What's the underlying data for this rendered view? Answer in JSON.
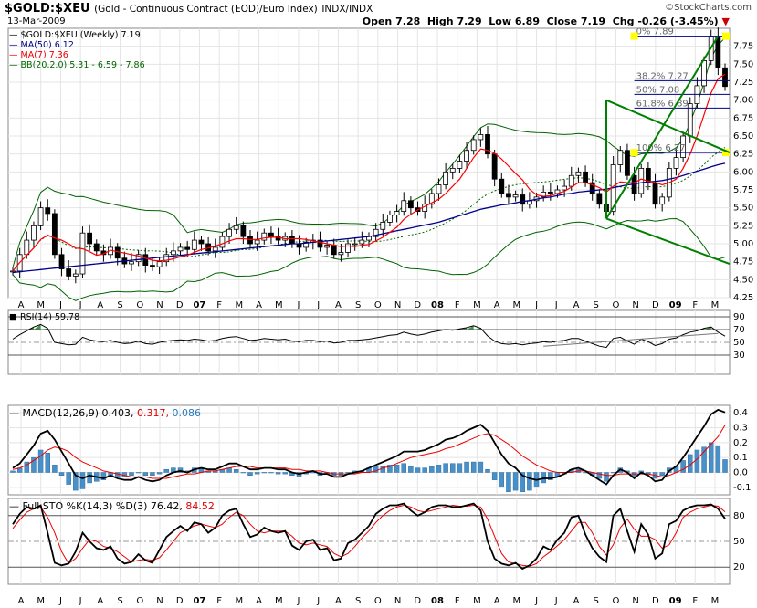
{
  "header": {
    "symbol": "$GOLD:$XEU",
    "description": "(Gold - Continuous Contract (EOD)/Euro Index)",
    "exchange": "INDX/INDX",
    "date": "13-Mar-2009",
    "brand": "©StockCharts.com",
    "quote": {
      "open_label": "Open",
      "open": "7.28",
      "high_label": "High",
      "high": "7.29",
      "low_label": "Low",
      "low": "6.89",
      "close_label": "Close",
      "close": "7.19",
      "chg_label": "Chg",
      "chg": "-0.26 (-3.45%)",
      "chg_arrow": "▼"
    }
  },
  "legend": {
    "main": "$GOLD:$XEU (Weekly) 7.19",
    "ma50": "MA(50) 6.12",
    "ma7": "MA(7) 7.36",
    "bb": "BB(20,2.0) 5.31 - 6.59 - 7.86",
    "rsi": "RSI(14) 59.78",
    "macd_label": "MACD(12,26,9)",
    "macd_v1": "0.403,",
    "macd_v2": "0.317,",
    "macd_v3": "0.086",
    "sto_label": "Full STO %K(14,3) %D(3)",
    "sto_v1": "76.42,",
    "sto_v2": "84.52"
  },
  "fib_labels": [
    "0% 7.89",
    "38.2% 7.27",
    "50% 7.08",
    "61.8% 6.89",
    "100% 6.27"
  ],
  "colors": {
    "price": "#000000",
    "ma50": "#00008b",
    "ma7": "#ff0000",
    "bb": "#006400",
    "fib": "#000080",
    "trend": "#008000",
    "hist": "#4a90c8",
    "grid": "#e4e4e4",
    "anchor": "#ffff00",
    "rsifill": "#2e7d32"
  },
  "chart_data": {
    "type": "line",
    "title": "$GOLD:$XEU (Weekly)",
    "x_ticks": [
      "A",
      "M",
      "J",
      "J",
      "A",
      "S",
      "O",
      "N",
      "D",
      "07",
      "F",
      "M",
      "A",
      "M",
      "J",
      "J",
      "A",
      "S",
      "O",
      "N",
      "D",
      "08",
      "F",
      "M",
      "A",
      "M",
      "J",
      "J",
      "A",
      "S",
      "O",
      "N",
      "D",
      "09",
      "F",
      "M"
    ],
    "n": 103,
    "price_axis": {
      "ylim": [
        4.25,
        8.0
      ],
      "ticks": [
        "4.25",
        "4.50",
        "4.75",
        "5.00",
        "5.25",
        "5.50",
        "5.75",
        "6.00",
        "6.25",
        "6.50",
        "6.75",
        "7.00",
        "7.25",
        "7.50",
        "7.75"
      ]
    },
    "price_close": [
      4.62,
      4.85,
      5.05,
      5.25,
      5.5,
      5.42,
      4.85,
      4.65,
      4.55,
      4.58,
      5.15,
      5.0,
      4.9,
      4.85,
      4.95,
      4.8,
      4.72,
      4.75,
      4.85,
      4.7,
      4.68,
      4.75,
      4.85,
      4.9,
      4.95,
      4.92,
      5.05,
      5.0,
      4.9,
      4.95,
      5.1,
      5.2,
      5.25,
      5.1,
      5.0,
      5.05,
      5.15,
      5.1,
      5.05,
      5.1,
      5.0,
      4.95,
      5.02,
      5.05,
      4.95,
      4.98,
      4.85,
      4.88,
      5.0,
      5.0,
      5.05,
      5.1,
      5.2,
      5.3,
      5.4,
      5.45,
      5.6,
      5.5,
      5.45,
      5.55,
      5.7,
      5.82,
      6.0,
      6.05,
      6.15,
      6.3,
      6.45,
      6.52,
      6.25,
      5.9,
      5.7,
      5.65,
      5.68,
      5.55,
      5.6,
      5.65,
      5.72,
      5.7,
      5.75,
      5.8,
      5.95,
      6.0,
      5.85,
      5.7,
      5.55,
      5.45,
      6.1,
      6.3,
      5.95,
      5.7,
      6.05,
      5.85,
      5.55,
      5.65,
      6.05,
      6.2,
      6.5,
      6.95,
      7.2,
      7.55,
      7.89,
      7.45,
      7.19
    ],
    "ma7": [
      4.62,
      4.74,
      4.84,
      4.94,
      5.06,
      5.12,
      5.08,
      5.05,
      5.0,
      4.94,
      4.93,
      4.89,
      4.84,
      4.86,
      4.91,
      4.89,
      4.87,
      4.85,
      4.83,
      4.8,
      4.77,
      4.76,
      4.77,
      4.79,
      4.82,
      4.84,
      4.88,
      4.92,
      4.94,
      4.97,
      5.0,
      5.04,
      5.07,
      5.07,
      5.06,
      5.06,
      5.08,
      5.09,
      5.09,
      5.07,
      5.07,
      5.07,
      5.06,
      5.04,
      5.02,
      5.0,
      4.98,
      4.96,
      4.97,
      4.96,
      4.98,
      4.99,
      5.04,
      5.09,
      5.16,
      5.23,
      5.34,
      5.41,
      5.47,
      5.52,
      5.57,
      5.62,
      5.7,
      5.8,
      5.9,
      6.05,
      6.2,
      6.32,
      6.3,
      6.26,
      6.18,
      6.08,
      5.98,
      5.89,
      5.76,
      5.68,
      5.66,
      5.67,
      5.7,
      5.73,
      5.79,
      5.85,
      5.85,
      5.82,
      5.78,
      5.72,
      5.8,
      5.86,
      5.85,
      5.85,
      5.9,
      5.87,
      5.85,
      5.82,
      5.85,
      5.9,
      6.05,
      6.25,
      6.5,
      6.8,
      7.1,
      7.3,
      7.36
    ],
    "ma50": [
      4.6,
      4.61,
      4.62,
      4.63,
      4.64,
      4.65,
      4.66,
      4.67,
      4.68,
      4.69,
      4.7,
      4.71,
      4.72,
      4.73,
      4.74,
      4.75,
      4.76,
      4.77,
      4.78,
      4.79,
      4.8,
      4.81,
      4.82,
      4.83,
      4.84,
      4.85,
      4.86,
      4.87,
      4.88,
      4.89,
      4.9,
      4.91,
      4.92,
      4.93,
      4.94,
      4.95,
      4.96,
      4.97,
      4.98,
      4.99,
      5.0,
      5.0,
      5.01,
      5.02,
      5.03,
      5.04,
      5.05,
      5.06,
      5.07,
      5.08,
      5.09,
      5.1,
      5.12,
      5.14,
      5.16,
      5.18,
      5.2,
      5.22,
      5.24,
      5.26,
      5.28,
      5.3,
      5.33,
      5.36,
      5.39,
      5.42,
      5.45,
      5.48,
      5.5,
      5.52,
      5.54,
      5.55,
      5.57,
      5.59,
      5.6,
      5.62,
      5.64,
      5.65,
      5.67,
      5.69,
      5.7,
      5.72,
      5.73,
      5.74,
      5.75,
      5.76,
      5.78,
      5.8,
      5.82,
      5.83,
      5.85,
      5.86,
      5.87,
      5.88,
      5.9,
      5.92,
      5.95,
      5.98,
      6.01,
      6.04,
      6.07,
      6.1,
      6.12
    ],
    "fib_levels": [
      7.89,
      7.27,
      7.08,
      6.89,
      6.27
    ],
    "rsi": {
      "ylim": [
        0,
        100
      ],
      "ticks": [
        "30",
        "50",
        "70",
        "90"
      ],
      "values": [
        55,
        62,
        68,
        74,
        78,
        72,
        50,
        48,
        46,
        47,
        58,
        54,
        52,
        51,
        53,
        50,
        48,
        49,
        52,
        48,
        47,
        50,
        52,
        53,
        54,
        53,
        55,
        54,
        52,
        53,
        56,
        58,
        59,
        56,
        53,
        54,
        56,
        55,
        54,
        55,
        52,
        51,
        53,
        53,
        51,
        52,
        49,
        50,
        53,
        53,
        54,
        55,
        57,
        59,
        61,
        62,
        66,
        63,
        61,
        63,
        66,
        68,
        70,
        69,
        71,
        73,
        76,
        72,
        60,
        52,
        48,
        47,
        48,
        46,
        48,
        49,
        51,
        50,
        52,
        53,
        56,
        56,
        52,
        48,
        44,
        42,
        56,
        58,
        52,
        47,
        55,
        51,
        45,
        48,
        55,
        57,
        62,
        66,
        68,
        72,
        74,
        66,
        59.78
      ]
    },
    "macd": {
      "ylim": [
        -0.15,
        0.45
      ],
      "ticks": [
        "-0.1",
        "0.0",
        "0.1",
        "0.2",
        "0.3",
        "0.4"
      ],
      "line": [
        0.03,
        0.06,
        0.12,
        0.18,
        0.26,
        0.28,
        0.22,
        0.14,
        0.06,
        -0.02,
        -0.04,
        -0.02,
        -0.03,
        -0.04,
        -0.02,
        -0.04,
        -0.05,
        -0.05,
        -0.03,
        -0.05,
        -0.06,
        -0.05,
        -0.02,
        0.0,
        0.01,
        0.0,
        0.02,
        0.03,
        0.02,
        0.02,
        0.04,
        0.06,
        0.06,
        0.04,
        0.02,
        0.02,
        0.03,
        0.03,
        0.02,
        0.02,
        0.0,
        -0.01,
        0.0,
        0.01,
        -0.01,
        -0.01,
        -0.03,
        -0.03,
        -0.01,
        0.0,
        0.01,
        0.03,
        0.05,
        0.07,
        0.09,
        0.11,
        0.14,
        0.14,
        0.14,
        0.15,
        0.17,
        0.19,
        0.22,
        0.23,
        0.25,
        0.28,
        0.3,
        0.32,
        0.28,
        0.2,
        0.12,
        0.06,
        0.03,
        -0.02,
        -0.04,
        -0.05,
        -0.04,
        -0.04,
        -0.03,
        -0.01,
        0.02,
        0.03,
        0.01,
        -0.02,
        -0.05,
        -0.08,
        -0.02,
        0.02,
        0.0,
        -0.04,
        0.0,
        -0.02,
        -0.06,
        -0.05,
        0.01,
        0.04,
        0.1,
        0.17,
        0.24,
        0.31,
        0.39,
        0.42,
        0.403
      ],
      "signal": [
        0.02,
        0.03,
        0.05,
        0.08,
        0.11,
        0.15,
        0.17,
        0.16,
        0.14,
        0.1,
        0.07,
        0.05,
        0.03,
        0.01,
        0.0,
        -0.01,
        -0.02,
        -0.03,
        -0.03,
        -0.03,
        -0.04,
        -0.04,
        -0.04,
        -0.03,
        -0.02,
        -0.01,
        -0.01,
        0.0,
        0.01,
        0.01,
        0.02,
        0.03,
        0.04,
        0.04,
        0.04,
        0.03,
        0.03,
        0.03,
        0.03,
        0.03,
        0.02,
        0.02,
        0.01,
        0.01,
        0.01,
        0.0,
        -0.01,
        -0.01,
        -0.01,
        -0.01,
        0.0,
        0.0,
        0.01,
        0.03,
        0.04,
        0.06,
        0.08,
        0.1,
        0.11,
        0.12,
        0.13,
        0.14,
        0.16,
        0.17,
        0.19,
        0.21,
        0.23,
        0.25,
        0.26,
        0.25,
        0.22,
        0.19,
        0.15,
        0.11,
        0.08,
        0.05,
        0.03,
        0.01,
        0.0,
        0.0,
        0.0,
        0.01,
        0.01,
        0.0,
        -0.01,
        -0.02,
        -0.02,
        -0.01,
        -0.01,
        -0.01,
        -0.01,
        -0.01,
        -0.02,
        -0.03,
        -0.02,
        0.0,
        0.02,
        0.05,
        0.09,
        0.14,
        0.19,
        0.24,
        0.317
      ]
    },
    "sto": {
      "ylim": [
        0,
        100
      ],
      "ticks": [
        "20",
        "50",
        "80"
      ],
      "k": [
        70,
        82,
        90,
        88,
        92,
        60,
        25,
        22,
        24,
        38,
        60,
        50,
        42,
        40,
        44,
        30,
        24,
        26,
        35,
        28,
        25,
        40,
        55,
        62,
        68,
        62,
        72,
        70,
        60,
        66,
        80,
        86,
        88,
        70,
        55,
        58,
        66,
        62,
        60,
        62,
        45,
        40,
        50,
        52,
        40,
        42,
        28,
        30,
        48,
        52,
        60,
        68,
        82,
        88,
        92,
        92,
        94,
        86,
        80,
        84,
        90,
        92,
        92,
        90,
        90,
        92,
        94,
        86,
        50,
        30,
        24,
        22,
        25,
        18,
        22,
        30,
        44,
        40,
        52,
        60,
        78,
        80,
        58,
        42,
        32,
        26,
        80,
        88,
        62,
        38,
        70,
        58,
        30,
        36,
        70,
        74,
        86,
        90,
        92,
        92,
        93,
        88,
        76.42
      ],
      "d": [
        65,
        75,
        84,
        88,
        90,
        78,
        60,
        38,
        24,
        30,
        42,
        52,
        50,
        44,
        42,
        38,
        32,
        26,
        28,
        29,
        28,
        31,
        40,
        50,
        60,
        64,
        68,
        70,
        68,
        66,
        70,
        78,
        84,
        80,
        70,
        62,
        60,
        62,
        62,
        62,
        56,
        48,
        46,
        48,
        46,
        44,
        36,
        32,
        36,
        44,
        54,
        62,
        72,
        80,
        86,
        90,
        92,
        90,
        86,
        84,
        86,
        88,
        90,
        92,
        91,
        91,
        92,
        90,
        76,
        56,
        36,
        26,
        24,
        22,
        21,
        24,
        32,
        38,
        45,
        52,
        62,
        72,
        72,
        60,
        44,
        34,
        46,
        66,
        76,
        64,
        56,
        56,
        52,
        42,
        46,
        60,
        78,
        84,
        88,
        90,
        92,
        91,
        84.52
      ]
    }
  }
}
